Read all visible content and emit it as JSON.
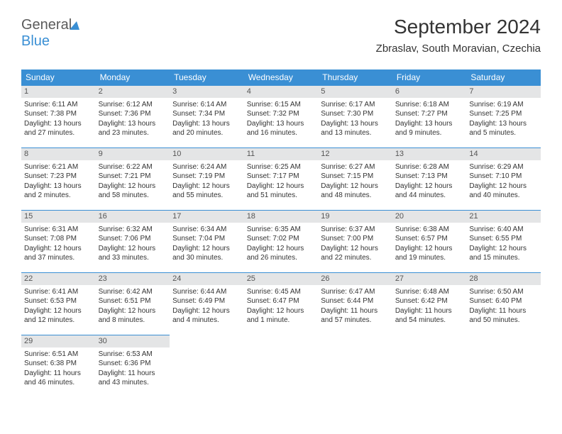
{
  "logo": {
    "part1": "General",
    "part2": "Blue"
  },
  "header": {
    "month_year": "September 2024",
    "location": "Zbraslav, South Moravian, Czechia"
  },
  "styling": {
    "header_bg": "#3a8fd4",
    "daynum_bg": "#e4e5e6",
    "text_color": "#333333",
    "page_bg": "#ffffff",
    "title_fontsize": 28,
    "cell_fontsize": 10,
    "daylabel_fontsize": 12
  },
  "weekdays": [
    "Sunday",
    "Monday",
    "Tuesday",
    "Wednesday",
    "Thursday",
    "Friday",
    "Saturday"
  ],
  "days": [
    {
      "n": 1,
      "sr": "6:11 AM",
      "ss": "7:38 PM",
      "dl": "13 hours and 27 minutes."
    },
    {
      "n": 2,
      "sr": "6:12 AM",
      "ss": "7:36 PM",
      "dl": "13 hours and 23 minutes."
    },
    {
      "n": 3,
      "sr": "6:14 AM",
      "ss": "7:34 PM",
      "dl": "13 hours and 20 minutes."
    },
    {
      "n": 4,
      "sr": "6:15 AM",
      "ss": "7:32 PM",
      "dl": "13 hours and 16 minutes."
    },
    {
      "n": 5,
      "sr": "6:17 AM",
      "ss": "7:30 PM",
      "dl": "13 hours and 13 minutes."
    },
    {
      "n": 6,
      "sr": "6:18 AM",
      "ss": "7:27 PM",
      "dl": "13 hours and 9 minutes."
    },
    {
      "n": 7,
      "sr": "6:19 AM",
      "ss": "7:25 PM",
      "dl": "13 hours and 5 minutes."
    },
    {
      "n": 8,
      "sr": "6:21 AM",
      "ss": "7:23 PM",
      "dl": "13 hours and 2 minutes."
    },
    {
      "n": 9,
      "sr": "6:22 AM",
      "ss": "7:21 PM",
      "dl": "12 hours and 58 minutes."
    },
    {
      "n": 10,
      "sr": "6:24 AM",
      "ss": "7:19 PM",
      "dl": "12 hours and 55 minutes."
    },
    {
      "n": 11,
      "sr": "6:25 AM",
      "ss": "7:17 PM",
      "dl": "12 hours and 51 minutes."
    },
    {
      "n": 12,
      "sr": "6:27 AM",
      "ss": "7:15 PM",
      "dl": "12 hours and 48 minutes."
    },
    {
      "n": 13,
      "sr": "6:28 AM",
      "ss": "7:13 PM",
      "dl": "12 hours and 44 minutes."
    },
    {
      "n": 14,
      "sr": "6:29 AM",
      "ss": "7:10 PM",
      "dl": "12 hours and 40 minutes."
    },
    {
      "n": 15,
      "sr": "6:31 AM",
      "ss": "7:08 PM",
      "dl": "12 hours and 37 minutes."
    },
    {
      "n": 16,
      "sr": "6:32 AM",
      "ss": "7:06 PM",
      "dl": "12 hours and 33 minutes."
    },
    {
      "n": 17,
      "sr": "6:34 AM",
      "ss": "7:04 PM",
      "dl": "12 hours and 30 minutes."
    },
    {
      "n": 18,
      "sr": "6:35 AM",
      "ss": "7:02 PM",
      "dl": "12 hours and 26 minutes."
    },
    {
      "n": 19,
      "sr": "6:37 AM",
      "ss": "7:00 PM",
      "dl": "12 hours and 22 minutes."
    },
    {
      "n": 20,
      "sr": "6:38 AM",
      "ss": "6:57 PM",
      "dl": "12 hours and 19 minutes."
    },
    {
      "n": 21,
      "sr": "6:40 AM",
      "ss": "6:55 PM",
      "dl": "12 hours and 15 minutes."
    },
    {
      "n": 22,
      "sr": "6:41 AM",
      "ss": "6:53 PM",
      "dl": "12 hours and 12 minutes."
    },
    {
      "n": 23,
      "sr": "6:42 AM",
      "ss": "6:51 PM",
      "dl": "12 hours and 8 minutes."
    },
    {
      "n": 24,
      "sr": "6:44 AM",
      "ss": "6:49 PM",
      "dl": "12 hours and 4 minutes."
    },
    {
      "n": 25,
      "sr": "6:45 AM",
      "ss": "6:47 PM",
      "dl": "12 hours and 1 minute."
    },
    {
      "n": 26,
      "sr": "6:47 AM",
      "ss": "6:44 PM",
      "dl": "11 hours and 57 minutes."
    },
    {
      "n": 27,
      "sr": "6:48 AM",
      "ss": "6:42 PM",
      "dl": "11 hours and 54 minutes."
    },
    {
      "n": 28,
      "sr": "6:50 AM",
      "ss": "6:40 PM",
      "dl": "11 hours and 50 minutes."
    },
    {
      "n": 29,
      "sr": "6:51 AM",
      "ss": "6:38 PM",
      "dl": "11 hours and 46 minutes."
    },
    {
      "n": 30,
      "sr": "6:53 AM",
      "ss": "6:36 PM",
      "dl": "11 hours and 43 minutes."
    }
  ],
  "labels": {
    "sunrise": "Sunrise:",
    "sunset": "Sunset:",
    "daylight": "Daylight:"
  }
}
